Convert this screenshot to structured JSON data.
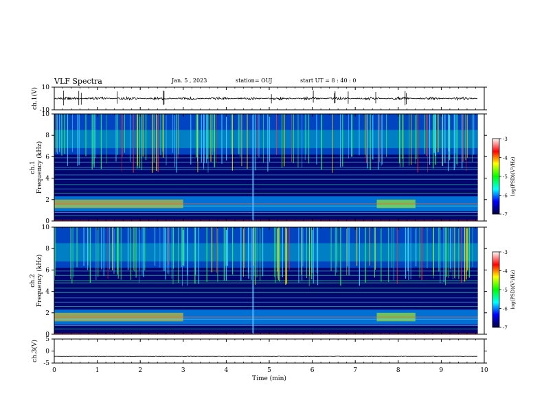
{
  "header": {
    "title": "VLF Spectra",
    "date": "Jan. 5 , 2023",
    "station": "station= OUJ",
    "start": "start UT = 8 : 40 : 0"
  },
  "colors": {
    "spectrogram_background": "#00066e",
    "waveform": "#000000",
    "colormap": [
      "#00003c",
      "#0000ff",
      "#00ffff",
      "#00ff00",
      "#ffff00",
      "#ff0000",
      "#ffffff"
    ]
  },
  "chart_data": [
    {
      "type": "line",
      "name": "ch1-waveform",
      "ylabel": "ch.1(V)",
      "ylim": [
        -10,
        10
      ],
      "yticks": [
        "10",
        "-10"
      ],
      "baseline": 0,
      "xlim": [
        0,
        10
      ]
    },
    {
      "type": "heatmap",
      "name": "ch1-spectrogram",
      "ylabel": "ch.1\nFrequency (kHz)",
      "ylim": [
        0,
        10
      ],
      "yticks": [
        "0",
        "2",
        "4",
        "6",
        "8",
        "10"
      ],
      "xlim": [
        0,
        10
      ],
      "data_end_min": 9.85,
      "broadband_burst_min": [
        4.6,
        4.65
      ],
      "colorbar": {
        "label": "log(PSD)(V²/Hz)",
        "range": [
          -7,
          -3
        ],
        "ticks": [
          "-3",
          "-4",
          "-5",
          "-6",
          "-7"
        ]
      }
    },
    {
      "type": "heatmap",
      "name": "ch2-spectrogram",
      "ylabel": "ch.2\nFrequency (kHz)",
      "ylim": [
        0,
        10
      ],
      "yticks": [
        "0",
        "2",
        "4",
        "6",
        "8",
        "10"
      ],
      "xlim": [
        0,
        10
      ],
      "data_end_min": 9.85,
      "broadband_burst_min": [
        4.6,
        4.65
      ],
      "colorbar": {
        "label": "log(PSD)(V²/Hz)",
        "range": [
          -7,
          -3
        ],
        "ticks": [
          "-3",
          "-4",
          "-5",
          "-6",
          "-7"
        ]
      }
    },
    {
      "type": "line",
      "name": "ch3-waveform",
      "ylabel": "ch.3(V)",
      "ylim": [
        -5,
        5
      ],
      "yticks": [
        "5",
        "0",
        "-5"
      ],
      "baseline": -2.2,
      "xlim": [
        0,
        10
      ],
      "xlabel": "Time (min)",
      "xticks": [
        "0",
        "1",
        "2",
        "3",
        "4",
        "5",
        "6",
        "7",
        "8",
        "9",
        "10"
      ]
    }
  ]
}
